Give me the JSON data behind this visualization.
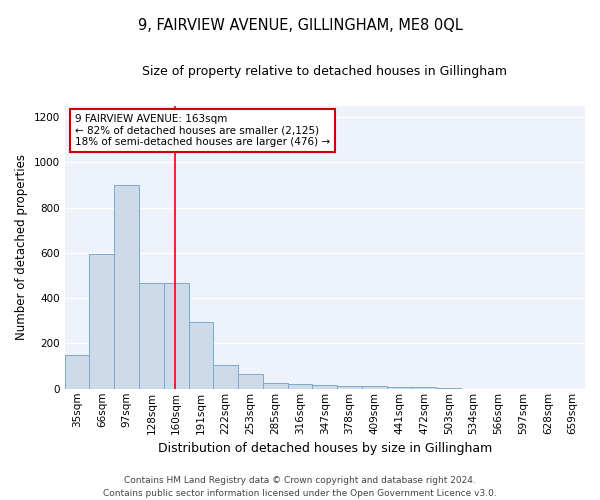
{
  "title": "9, FAIRVIEW AVENUE, GILLINGHAM, ME8 0QL",
  "subtitle": "Size of property relative to detached houses in Gillingham",
  "xlabel": "Distribution of detached houses by size in Gillingham",
  "ylabel": "Number of detached properties",
  "categories": [
    "35sqm",
    "66sqm",
    "97sqm",
    "128sqm",
    "160sqm",
    "191sqm",
    "222sqm",
    "253sqm",
    "285sqm",
    "316sqm",
    "347sqm",
    "378sqm",
    "409sqm",
    "441sqm",
    "472sqm",
    "503sqm",
    "534sqm",
    "566sqm",
    "597sqm",
    "628sqm",
    "659sqm"
  ],
  "values": [
    150,
    595,
    900,
    467,
    467,
    293,
    103,
    65,
    27,
    22,
    15,
    10,
    10,
    8,
    6,
    5,
    0,
    0,
    0,
    0,
    0
  ],
  "bar_color": "#cddaea",
  "bar_edge_color": "#7aaac8",
  "background_color": "#eef2fa",
  "grid_color": "#ffffff",
  "red_line_x": 3.97,
  "annotation_text": "9 FAIRVIEW AVENUE: 163sqm\n← 82% of detached houses are smaller (2,125)\n18% of semi-detached houses are larger (476) →",
  "annotation_box_facecolor": "#ffffff",
  "annotation_box_edgecolor": "#cc0000",
  "ylim": [
    0,
    1250
  ],
  "yticks": [
    0,
    200,
    400,
    600,
    800,
    1000,
    1200
  ],
  "footer_line1": "Contains HM Land Registry data © Crown copyright and database right 2024.",
  "footer_line2": "Contains public sector information licensed under the Open Government Licence v3.0.",
  "title_fontsize": 10.5,
  "subtitle_fontsize": 9,
  "ylabel_fontsize": 8.5,
  "xlabel_fontsize": 9,
  "tick_fontsize": 7.5,
  "footer_fontsize": 6.5,
  "ann_fontsize": 7.5
}
